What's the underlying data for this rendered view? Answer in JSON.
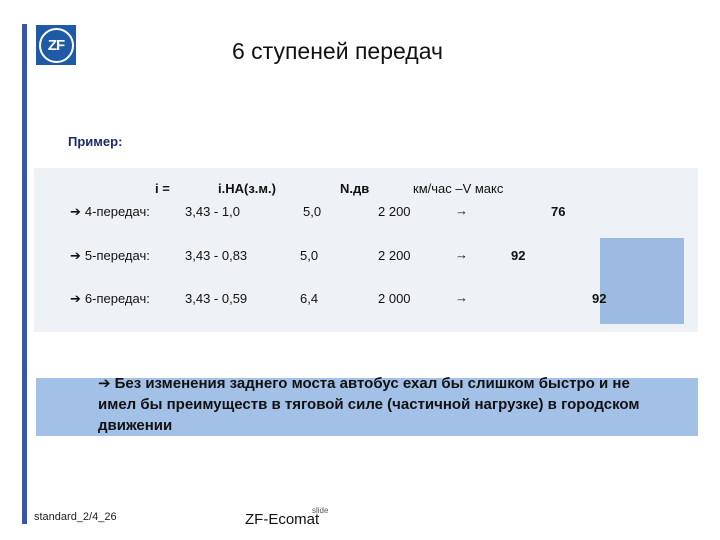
{
  "slide": {
    "title": "6 ступеней передач",
    "logo_text": "ZF",
    "example_label": "Пример:"
  },
  "table": {
    "headers": [
      "i =",
      "i.HA(з.м.)",
      "N.дв",
      "км/час –V макс"
    ],
    "rows": [
      {
        "label": "4-передач:",
        "ratio": "3,43 - 1,0",
        "na": "5,0",
        "rpm": "2 200",
        "arrow": "→",
        "speed": "76"
      },
      {
        "label": "5-передач:",
        "ratio": "3,43 - 0,83",
        "na": "5,0",
        "rpm": "2 200",
        "arrow": "→",
        "speed": "92"
      },
      {
        "label": "6-передач:",
        "ratio": "3,43 - 0,59",
        "na": "6,4",
        "rpm": "2 000",
        "arrow": "→",
        "speed": "92"
      }
    ],
    "row_icon": "arrow-right-icon"
  },
  "callout": {
    "icon": "arrow-right-icon",
    "text": "Без изменения  заднего моста  автобус ехал бы слишком быстро и не имел бы  преимуществ в тяговой силе (частичной нагрузке) в городском движении"
  },
  "footer": {
    "left": "standard_2/4_26",
    "page": "slide",
    "center": "ZF-Ecomat"
  },
  "colors": {
    "accent_bar": "#3a55a4",
    "logo_bg": "#1f5aa6",
    "table_bg": "#eef2f6",
    "highlight": "#9dbbe2"
  }
}
